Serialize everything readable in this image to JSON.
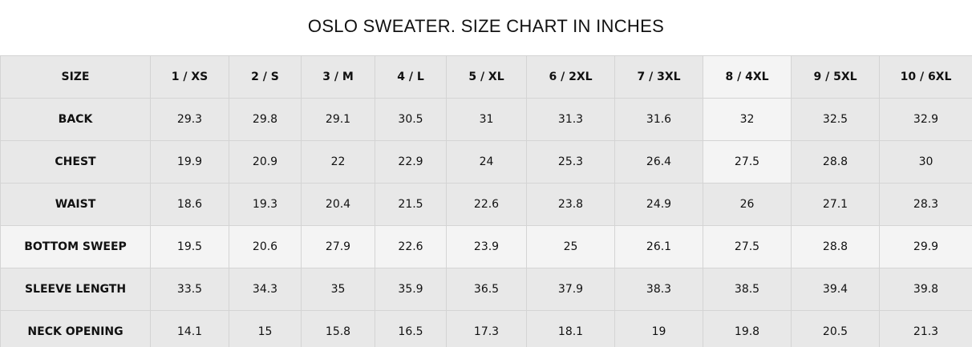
{
  "header": {
    "title": "OSLO SWEATER. SIZE CHART IN INCHES"
  },
  "table": {
    "columns": [
      "SIZE",
      "1 / XS",
      "2 / S",
      "3 / M",
      "4 / L",
      "5 / XL",
      "6 / 2XL",
      "7 / 3XL",
      "8 / 4XL",
      "9 / 5XL",
      "10 / 6XL"
    ],
    "rows": [
      [
        "BACK",
        "29.3",
        "29.8",
        "29.1",
        "30.5",
        "31",
        "31.3",
        "31.6",
        "32",
        "32.5",
        "32.9"
      ],
      [
        "CHEST",
        "19.9",
        "20.9",
        "22",
        "22.9",
        "24",
        "25.3",
        "26.4",
        "27.5",
        "28.8",
        "30"
      ],
      [
        "WAIST",
        "18.6",
        "19.3",
        "20.4",
        "21.5",
        "22.6",
        "23.8",
        "24.9",
        "26",
        "27.1",
        "28.3"
      ],
      [
        "BOTTOM SWEEP",
        "19.5",
        "20.6",
        "27.9",
        "22.6",
        "23.9",
        "25",
        "26.1",
        "27.5",
        "28.8",
        "29.9"
      ],
      [
        "SLEEVE LENGTH",
        "33.5",
        "34.3",
        "35",
        "35.9",
        "36.5",
        "37.9",
        "38.3",
        "38.5",
        "39.4",
        "39.8"
      ],
      [
        "NECK OPENING",
        "14.1",
        "15",
        "15.8",
        "16.5",
        "17.3",
        "18.1",
        "19",
        "19.8",
        "20.5",
        "21.3"
      ]
    ]
  }
}
